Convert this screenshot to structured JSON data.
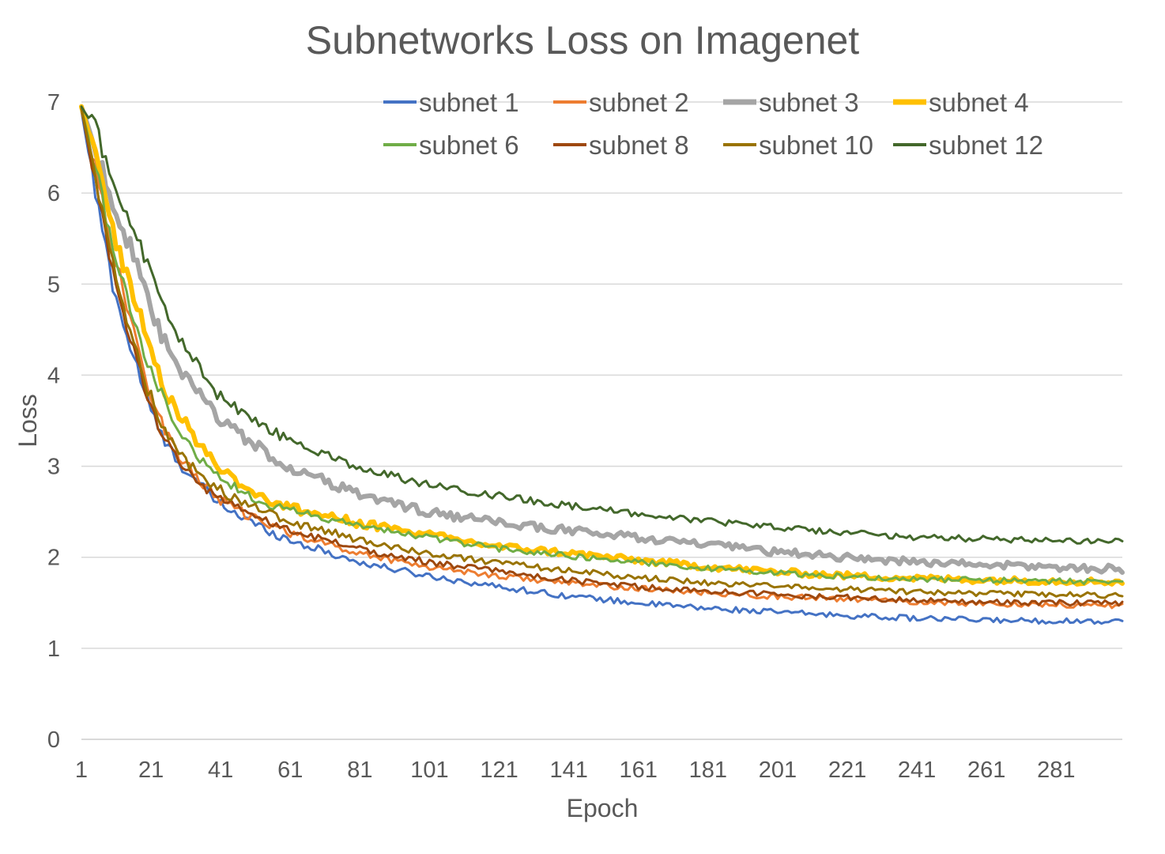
{
  "chart_data": {
    "type": "line",
    "title": "Subnetworks Loss on Imagenet",
    "xlabel": "Epoch",
    "ylabel": "Loss",
    "x_range": [
      1,
      300
    ],
    "x_ticks": [
      1,
      21,
      41,
      61,
      81,
      101,
      121,
      141,
      161,
      181,
      201,
      221,
      241,
      261,
      281
    ],
    "ylim": [
      0,
      7
    ],
    "y_ticks": [
      0,
      1,
      2,
      3,
      4,
      5,
      6,
      7
    ],
    "grid": "horizontal",
    "legend_position": "top-right",
    "series": [
      {
        "name": "subnet 1",
        "color": "#4472C4",
        "width": 3,
        "start": 6.9,
        "k": 0.07,
        "end": 1.3,
        "tail_rate": 0.0036,
        "noise": 0.03,
        "points": [
          [
            1,
            6.9
          ],
          [
            5,
            6.0
          ],
          [
            10,
            5.0
          ],
          [
            15,
            4.3
          ],
          [
            17,
            4.1
          ],
          [
            20,
            3.7
          ],
          [
            25,
            3.25
          ],
          [
            30,
            3.0
          ],
          [
            40,
            2.6
          ],
          [
            50,
            2.38
          ],
          [
            60,
            2.2
          ],
          [
            80,
            1.95
          ],
          [
            100,
            1.8
          ],
          [
            120,
            1.68
          ],
          [
            140,
            1.58
          ],
          [
            160,
            1.5
          ],
          [
            180,
            1.44
          ],
          [
            200,
            1.4
          ],
          [
            220,
            1.36
          ],
          [
            240,
            1.33
          ],
          [
            260,
            1.31
          ],
          [
            280,
            1.3
          ],
          [
            300,
            1.3
          ]
        ]
      },
      {
        "name": "subnet 2",
        "color": "#ED7D31",
        "width": 3,
        "start": 6.9,
        "k": 0.065,
        "end": 1.47,
        "tail_rate": 0.0038,
        "noise": 0.03,
        "points": [
          [
            1,
            6.9
          ],
          [
            5,
            6.3
          ],
          [
            10,
            5.4
          ],
          [
            15,
            4.6
          ],
          [
            20,
            3.9
          ],
          [
            25,
            3.4
          ],
          [
            30,
            3.05
          ],
          [
            40,
            2.65
          ],
          [
            50,
            2.43
          ],
          [
            60,
            2.28
          ],
          [
            80,
            2.05
          ],
          [
            100,
            1.9
          ],
          [
            120,
            1.8
          ],
          [
            140,
            1.72
          ],
          [
            160,
            1.66
          ],
          [
            180,
            1.61
          ],
          [
            200,
            1.57
          ],
          [
            220,
            1.54
          ],
          [
            240,
            1.51
          ],
          [
            260,
            1.49
          ],
          [
            280,
            1.48
          ],
          [
            300,
            1.47
          ]
        ]
      },
      {
        "name": "subnet 3",
        "color": "#A5A5A5",
        "width": 6,
        "start": 6.95,
        "k": 0.045,
        "end": 1.87,
        "tail_rate": 0.0042,
        "noise": 0.04,
        "points": [
          [
            1,
            6.95
          ],
          [
            5,
            6.5
          ],
          [
            10,
            5.9
          ],
          [
            15,
            5.4
          ],
          [
            20,
            4.8
          ],
          [
            25,
            4.35
          ],
          [
            30,
            4.0
          ],
          [
            40,
            3.55
          ],
          [
            50,
            3.25
          ],
          [
            60,
            3.0
          ],
          [
            80,
            2.7
          ],
          [
            100,
            2.5
          ],
          [
            120,
            2.38
          ],
          [
            140,
            2.3
          ],
          [
            160,
            2.22
          ],
          [
            180,
            2.14
          ],
          [
            200,
            2.06
          ],
          [
            220,
            2.0
          ],
          [
            240,
            1.95
          ],
          [
            260,
            1.92
          ],
          [
            280,
            1.89
          ],
          [
            300,
            1.87
          ]
        ]
      },
      {
        "name": "subnet 4",
        "color": "#FFC000",
        "width": 6,
        "start": 6.95,
        "k": 0.05,
        "end": 1.73,
        "tail_rate": 0.0045,
        "noise": 0.035,
        "points": [
          [
            1,
            6.95
          ],
          [
            5,
            6.4
          ],
          [
            10,
            5.6
          ],
          [
            15,
            5.0
          ],
          [
            20,
            4.4
          ],
          [
            25,
            3.85
          ],
          [
            30,
            3.5
          ],
          [
            40,
            3.0
          ],
          [
            50,
            2.72
          ],
          [
            60,
            2.55
          ],
          [
            80,
            2.38
          ],
          [
            100,
            2.25
          ],
          [
            120,
            2.12
          ],
          [
            140,
            2.05
          ],
          [
            160,
            1.97
          ],
          [
            180,
            1.9
          ],
          [
            200,
            1.84
          ],
          [
            220,
            1.8
          ],
          [
            240,
            1.77
          ],
          [
            260,
            1.75
          ],
          [
            280,
            1.74
          ],
          [
            300,
            1.73
          ]
        ]
      },
      {
        "name": "subnet 6",
        "color": "#70AD47",
        "width": 3,
        "start": 6.93,
        "k": 0.055,
        "end": 1.73,
        "tail_rate": 0.005,
        "noise": 0.03,
        "points": [
          [
            1,
            6.93
          ],
          [
            5,
            6.3
          ],
          [
            10,
            5.4
          ],
          [
            15,
            4.7
          ],
          [
            20,
            4.15
          ],
          [
            25,
            3.7
          ],
          [
            30,
            3.3
          ],
          [
            40,
            2.9
          ],
          [
            50,
            2.65
          ],
          [
            60,
            2.52
          ],
          [
            80,
            2.35
          ],
          [
            100,
            2.22
          ],
          [
            120,
            2.1
          ],
          [
            140,
            2.02
          ],
          [
            160,
            1.95
          ],
          [
            180,
            1.88
          ],
          [
            200,
            1.83
          ],
          [
            220,
            1.79
          ],
          [
            240,
            1.76
          ],
          [
            260,
            1.75
          ],
          [
            280,
            1.74
          ],
          [
            300,
            1.73
          ]
        ]
      },
      {
        "name": "subnet 8",
        "color": "#9E480E",
        "width": 3,
        "start": 6.93,
        "k": 0.062,
        "end": 1.5,
        "tail_rate": 0.004,
        "noise": 0.03,
        "points": [
          [
            1,
            6.93
          ],
          [
            5,
            6.1
          ],
          [
            10,
            5.1
          ],
          [
            15,
            4.4
          ],
          [
            20,
            3.75
          ],
          [
            25,
            3.3
          ],
          [
            30,
            3.0
          ],
          [
            40,
            2.65
          ],
          [
            50,
            2.45
          ],
          [
            60,
            2.3
          ],
          [
            80,
            2.1
          ],
          [
            100,
            1.95
          ],
          [
            120,
            1.85
          ],
          [
            140,
            1.75
          ],
          [
            160,
            1.68
          ],
          [
            180,
            1.63
          ],
          [
            200,
            1.59
          ],
          [
            220,
            1.56
          ],
          [
            240,
            1.53
          ],
          [
            260,
            1.51
          ],
          [
            280,
            1.5
          ],
          [
            300,
            1.5
          ]
        ]
      },
      {
        "name": "subnet 10",
        "color": "#997300",
        "width": 3,
        "start": 6.93,
        "k": 0.06,
        "end": 1.58,
        "tail_rate": 0.004,
        "noise": 0.03,
        "points": [
          [
            1,
            6.93
          ],
          [
            5,
            6.2
          ],
          [
            10,
            5.2
          ],
          [
            15,
            4.5
          ],
          [
            20,
            3.85
          ],
          [
            25,
            3.4
          ],
          [
            30,
            3.1
          ],
          [
            40,
            2.75
          ],
          [
            50,
            2.55
          ],
          [
            60,
            2.4
          ],
          [
            80,
            2.2
          ],
          [
            100,
            2.05
          ],
          [
            120,
            1.94
          ],
          [
            140,
            1.86
          ],
          [
            160,
            1.78
          ],
          [
            180,
            1.72
          ],
          [
            200,
            1.68
          ],
          [
            220,
            1.65
          ],
          [
            240,
            1.62
          ],
          [
            260,
            1.6
          ],
          [
            280,
            1.59
          ],
          [
            300,
            1.58
          ]
        ]
      },
      {
        "name": "subnet 12",
        "color": "#43682B",
        "width": 3,
        "start": 6.95,
        "k": 0.04,
        "end": 2.17,
        "tail_rate": 0.004,
        "noise": 0.035,
        "points": [
          [
            1,
            6.95
          ],
          [
            5,
            6.7
          ],
          [
            10,
            6.2
          ],
          [
            15,
            5.7
          ],
          [
            20,
            5.2
          ],
          [
            25,
            4.7
          ],
          [
            30,
            4.35
          ],
          [
            40,
            3.8
          ],
          [
            50,
            3.5
          ],
          [
            60,
            3.3
          ],
          [
            80,
            3.0
          ],
          [
            100,
            2.8
          ],
          [
            120,
            2.68
          ],
          [
            140,
            2.57
          ],
          [
            160,
            2.48
          ],
          [
            180,
            2.4
          ],
          [
            200,
            2.33
          ],
          [
            220,
            2.27
          ],
          [
            240,
            2.22
          ],
          [
            260,
            2.2
          ],
          [
            280,
            2.18
          ],
          [
            300,
            2.17
          ]
        ]
      }
    ]
  }
}
